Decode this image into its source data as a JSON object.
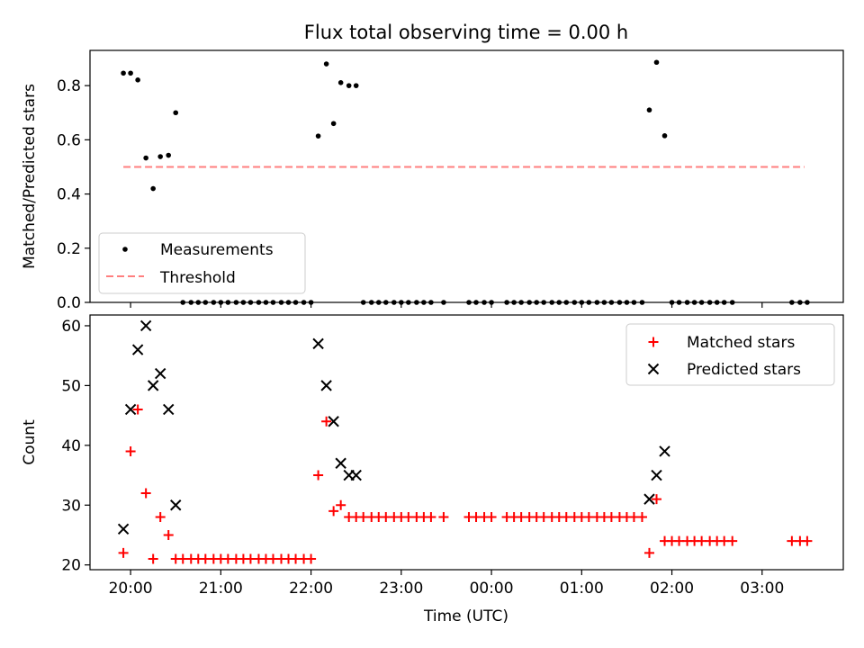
{
  "colors": {
    "matched": "#ff0000",
    "predicted": "#000000",
    "measurement": "#000000",
    "threshold": "#ff7f7f"
  },
  "time_axis": {
    "label": "Time (UTC)",
    "ticks": [
      {
        "h": 20,
        "label": "20:00"
      },
      {
        "h": 21,
        "label": "21:00"
      },
      {
        "h": 22,
        "label": "22:00"
      },
      {
        "h": 23,
        "label": "23:00"
      },
      {
        "h": 24,
        "label": "00:00"
      },
      {
        "h": 25,
        "label": "01:00"
      },
      {
        "h": 26,
        "label": "02:00"
      },
      {
        "h": 27,
        "label": "03:00"
      }
    ]
  },
  "chart_data": [
    {
      "type": "scatter",
      "title": "Flux total observing time = 0.00 h",
      "xlabel": "",
      "ylabel": "Matched/Predicted stars",
      "xlim": [
        19.55,
        27.9
      ],
      "ylim": [
        0,
        0.93
      ],
      "yticks": [
        0,
        0.2,
        0.4,
        0.6,
        0.8
      ],
      "grid": false,
      "legend": {
        "placement": "lower-left",
        "entries": [
          "Measurements",
          "Threshold"
        ]
      },
      "threshold": {
        "name": "Threshold",
        "value": 0.5,
        "x_range": [
          19.92,
          27.47
        ]
      },
      "series": [
        {
          "name": "Measurements",
          "marker": "dot",
          "points": [
            [
              19.92,
              0.846
            ],
            [
              20.0,
              0.846
            ],
            [
              20.08,
              0.821
            ],
            [
              20.17,
              0.533
            ],
            [
              20.25,
              0.42
            ],
            [
              20.33,
              0.538
            ],
            [
              20.42,
              0.543
            ],
            [
              20.5,
              0.7
            ],
            [
              20.58,
              0
            ],
            [
              20.67,
              0
            ],
            [
              20.75,
              0
            ],
            [
              20.83,
              0
            ],
            [
              20.92,
              0
            ],
            [
              21.0,
              0
            ],
            [
              21.08,
              0
            ],
            [
              21.17,
              0
            ],
            [
              21.25,
              0
            ],
            [
              21.33,
              0
            ],
            [
              21.42,
              0
            ],
            [
              21.5,
              0
            ],
            [
              21.58,
              0
            ],
            [
              21.67,
              0
            ],
            [
              21.75,
              0
            ],
            [
              21.83,
              0
            ],
            [
              21.92,
              0
            ],
            [
              22.0,
              0
            ],
            [
              22.08,
              0.614
            ],
            [
              22.17,
              0.88
            ],
            [
              22.25,
              0.66
            ],
            [
              22.33,
              0.811
            ],
            [
              22.42,
              0.8
            ],
            [
              22.5,
              0.8
            ],
            [
              22.58,
              0
            ],
            [
              22.67,
              0
            ],
            [
              22.75,
              0
            ],
            [
              22.83,
              0
            ],
            [
              22.92,
              0
            ],
            [
              23.0,
              0
            ],
            [
              23.08,
              0
            ],
            [
              23.17,
              0
            ],
            [
              23.25,
              0
            ],
            [
              23.33,
              0
            ],
            [
              23.47,
              0
            ],
            [
              23.75,
              0
            ],
            [
              23.83,
              0
            ],
            [
              23.92,
              0
            ],
            [
              24.0,
              0
            ],
            [
              24.17,
              0
            ],
            [
              24.25,
              0
            ],
            [
              24.33,
              0
            ],
            [
              24.42,
              0
            ],
            [
              24.5,
              0
            ],
            [
              24.58,
              0
            ],
            [
              24.67,
              0
            ],
            [
              24.75,
              0
            ],
            [
              24.83,
              0
            ],
            [
              24.92,
              0
            ],
            [
              25.0,
              0
            ],
            [
              25.08,
              0
            ],
            [
              25.17,
              0
            ],
            [
              25.25,
              0
            ],
            [
              25.33,
              0
            ],
            [
              25.42,
              0
            ],
            [
              25.5,
              0
            ],
            [
              25.58,
              0
            ],
            [
              25.67,
              0
            ],
            [
              25.75,
              0.71
            ],
            [
              25.83,
              0.886
            ],
            [
              25.92,
              0.615
            ],
            [
              26.0,
              0
            ],
            [
              26.08,
              0
            ],
            [
              26.17,
              0
            ],
            [
              26.25,
              0
            ],
            [
              26.33,
              0
            ],
            [
              26.42,
              0
            ],
            [
              26.5,
              0
            ],
            [
              26.58,
              0
            ],
            [
              26.67,
              0
            ],
            [
              27.33,
              0
            ],
            [
              27.42,
              0
            ],
            [
              27.5,
              0
            ]
          ]
        }
      ]
    },
    {
      "type": "scatter",
      "title": "",
      "xlabel": "Time (UTC)",
      "ylabel": "Count",
      "xlim": [
        19.55,
        27.9
      ],
      "ylim": [
        19.2,
        61.8
      ],
      "yticks": [
        20,
        30,
        40,
        50,
        60
      ],
      "grid": false,
      "legend": {
        "placement": "upper-right",
        "entries": [
          "Matched stars",
          "Predicted stars"
        ]
      },
      "series": [
        {
          "name": "Matched stars",
          "marker": "plus",
          "points": [
            [
              19.92,
              22
            ],
            [
              20.0,
              39
            ],
            [
              20.08,
              46
            ],
            [
              20.17,
              32
            ],
            [
              20.25,
              21
            ],
            [
              20.33,
              28
            ],
            [
              20.42,
              25
            ],
            [
              20.5,
              21
            ],
            [
              20.58,
              21
            ],
            [
              20.67,
              21
            ],
            [
              20.75,
              21
            ],
            [
              20.83,
              21
            ],
            [
              20.92,
              21
            ],
            [
              21.0,
              21
            ],
            [
              21.08,
              21
            ],
            [
              21.17,
              21
            ],
            [
              21.25,
              21
            ],
            [
              21.33,
              21
            ],
            [
              21.42,
              21
            ],
            [
              21.5,
              21
            ],
            [
              21.58,
              21
            ],
            [
              21.67,
              21
            ],
            [
              21.75,
              21
            ],
            [
              21.83,
              21
            ],
            [
              21.92,
              21
            ],
            [
              22.0,
              21
            ],
            [
              22.08,
              35
            ],
            [
              22.17,
              44
            ],
            [
              22.25,
              29
            ],
            [
              22.33,
              30
            ],
            [
              22.42,
              28
            ],
            [
              22.5,
              28
            ],
            [
              22.58,
              28
            ],
            [
              22.67,
              28
            ],
            [
              22.75,
              28
            ],
            [
              22.83,
              28
            ],
            [
              22.92,
              28
            ],
            [
              23.0,
              28
            ],
            [
              23.08,
              28
            ],
            [
              23.17,
              28
            ],
            [
              23.25,
              28
            ],
            [
              23.33,
              28
            ],
            [
              23.47,
              28
            ],
            [
              23.75,
              28
            ],
            [
              23.83,
              28
            ],
            [
              23.92,
              28
            ],
            [
              24.0,
              28
            ],
            [
              24.17,
              28
            ],
            [
              24.25,
              28
            ],
            [
              24.33,
              28
            ],
            [
              24.42,
              28
            ],
            [
              24.5,
              28
            ],
            [
              24.58,
              28
            ],
            [
              24.67,
              28
            ],
            [
              24.75,
              28
            ],
            [
              24.83,
              28
            ],
            [
              24.92,
              28
            ],
            [
              25.0,
              28
            ],
            [
              25.08,
              28
            ],
            [
              25.17,
              28
            ],
            [
              25.25,
              28
            ],
            [
              25.33,
              28
            ],
            [
              25.42,
              28
            ],
            [
              25.5,
              28
            ],
            [
              25.58,
              28
            ],
            [
              25.67,
              28
            ],
            [
              25.75,
              22
            ],
            [
              25.83,
              31
            ],
            [
              25.92,
              24
            ],
            [
              26.0,
              24
            ],
            [
              26.08,
              24
            ],
            [
              26.17,
              24
            ],
            [
              26.25,
              24
            ],
            [
              26.33,
              24
            ],
            [
              26.42,
              24
            ],
            [
              26.5,
              24
            ],
            [
              26.58,
              24
            ],
            [
              26.67,
              24
            ],
            [
              27.33,
              24
            ],
            [
              27.42,
              24
            ],
            [
              27.5,
              24
            ]
          ]
        },
        {
          "name": "Predicted stars",
          "marker": "x",
          "points": [
            [
              19.92,
              26
            ],
            [
              20.0,
              46
            ],
            [
              20.08,
              56
            ],
            [
              20.17,
              60
            ],
            [
              20.25,
              50
            ],
            [
              20.33,
              52
            ],
            [
              20.42,
              46
            ],
            [
              20.5,
              30
            ],
            [
              22.08,
              57
            ],
            [
              22.17,
              50
            ],
            [
              22.25,
              44
            ],
            [
              22.33,
              37
            ],
            [
              22.42,
              35
            ],
            [
              22.5,
              35
            ],
            [
              25.75,
              31
            ],
            [
              25.83,
              35
            ],
            [
              25.92,
              39
            ]
          ]
        }
      ]
    }
  ]
}
